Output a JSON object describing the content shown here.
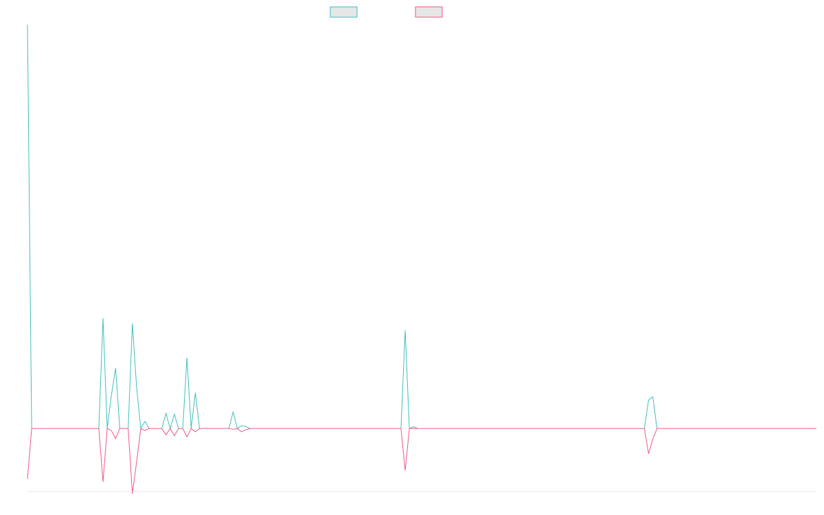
{
  "chart_data": {
    "type": "line",
    "title": "",
    "xlabel": "",
    "ylabel": "",
    "grid": false,
    "legend_position": "top-center",
    "x_count": 188,
    "ylim": [
      -1.5,
      9.7
    ],
    "series": [
      {
        "color": "#3dbfbf",
        "swatch_fill": "#e6e6e6",
        "points": [
          [
            0,
            9.7
          ],
          [
            1,
            0
          ],
          [
            17,
            0
          ],
          [
            18,
            2.65
          ],
          [
            19,
            0
          ],
          [
            20,
            0.8
          ],
          [
            21,
            1.45
          ],
          [
            22,
            0
          ],
          [
            24,
            0
          ],
          [
            25,
            2.52
          ],
          [
            26,
            1.0
          ],
          [
            27,
            0
          ],
          [
            28,
            0.17
          ],
          [
            29,
            0
          ],
          [
            32,
            0
          ],
          [
            33,
            0.36
          ],
          [
            34,
            0
          ],
          [
            35,
            0.34
          ],
          [
            36,
            0
          ],
          [
            37,
            0
          ],
          [
            38,
            1.7
          ],
          [
            39,
            0
          ],
          [
            40,
            0.86
          ],
          [
            41,
            0
          ],
          [
            48,
            0
          ],
          [
            49,
            0.4
          ],
          [
            50,
            0
          ],
          [
            51,
            0.07
          ],
          [
            52,
            0.05
          ],
          [
            53,
            0
          ],
          [
            89,
            0
          ],
          [
            90,
            2.36
          ],
          [
            91,
            0
          ],
          [
            92,
            0.04
          ],
          [
            93,
            0
          ],
          [
            147,
            0
          ],
          [
            148,
            0.68
          ],
          [
            149,
            0.76
          ],
          [
            150,
            0
          ],
          [
            188,
            0
          ]
        ]
      },
      {
        "color": "#f0577f",
        "swatch_fill": "#e6e6e6",
        "points": [
          [
            0,
            -1.2
          ],
          [
            1,
            0
          ],
          [
            17,
            0
          ],
          [
            18,
            -1.27
          ],
          [
            19,
            0
          ],
          [
            20,
            -0.05
          ],
          [
            21,
            -0.24
          ],
          [
            22,
            0
          ],
          [
            24,
            0
          ],
          [
            25,
            -1.55
          ],
          [
            26,
            -0.8
          ],
          [
            27,
            0
          ],
          [
            28,
            -0.05
          ],
          [
            29,
            0
          ],
          [
            32,
            0
          ],
          [
            33,
            -0.15
          ],
          [
            34,
            0
          ],
          [
            35,
            -0.17
          ],
          [
            36,
            0
          ],
          [
            37,
            0
          ],
          [
            38,
            -0.2
          ],
          [
            39,
            0
          ],
          [
            40,
            -0.08
          ],
          [
            41,
            0
          ],
          [
            48,
            0
          ],
          [
            49,
            -0.02
          ],
          [
            50,
            0
          ],
          [
            51,
            -0.08
          ],
          [
            52,
            -0.03
          ],
          [
            53,
            0
          ],
          [
            89,
            0
          ],
          [
            90,
            -1.0
          ],
          [
            91,
            0
          ],
          [
            147,
            0
          ],
          [
            148,
            -0.6
          ],
          [
            149,
            -0.25
          ],
          [
            150,
            0
          ],
          [
            188,
            0
          ]
        ]
      }
    ]
  }
}
